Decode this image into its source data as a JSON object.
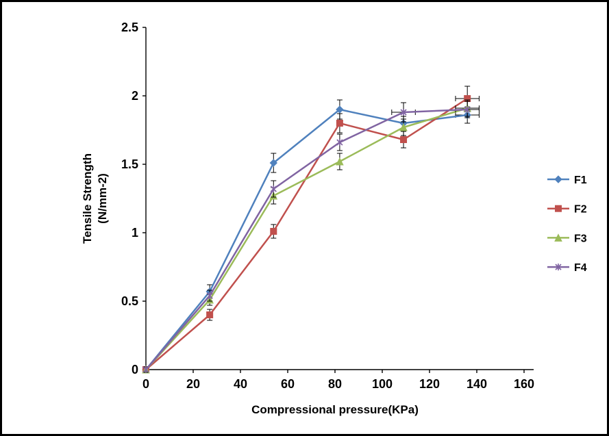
{
  "figure": {
    "background": "#ffffff",
    "border_color": "#000000"
  },
  "chart_data": {
    "type": "line",
    "title": "",
    "xlabel": "Compressional pressure(KPa)",
    "ylabel": "Tensile Strength (N/mm-2)",
    "ylabel_lines": [
      "Tensile Strength",
      "(N/mm-2)"
    ],
    "xlim": [
      0,
      160
    ],
    "ylim": [
      0,
      2.5
    ],
    "x_ticks": [
      "0",
      "20",
      "40",
      "60",
      "80",
      "100",
      "120",
      "140",
      "160"
    ],
    "y_ticks": [
      "0",
      "0.5",
      "1",
      "1.5",
      "2",
      "2.5"
    ],
    "grid": false,
    "error_bars": true,
    "legend_position": "right",
    "x": [
      0,
      27,
      54,
      82,
      109,
      136
    ],
    "series": [
      {
        "name": "F1",
        "color": "#4F81BD",
        "marker": "diamond",
        "values": [
          0,
          0.57,
          1.51,
          1.9,
          1.8,
          1.86
        ],
        "y_err": [
          0.02,
          0.05,
          0.07,
          0.07,
          0.05,
          0.06
        ],
        "x_err": [
          0,
          0,
          0,
          0,
          0,
          5
        ]
      },
      {
        "name": "F2",
        "color": "#C0504D",
        "marker": "square",
        "values": [
          0,
          0.4,
          1.01,
          1.8,
          1.68,
          1.98
        ],
        "y_err": [
          0.02,
          0.04,
          0.05,
          0.07,
          0.06,
          0.09
        ],
        "x_err": [
          0,
          0,
          0,
          0,
          0,
          5
        ]
      },
      {
        "name": "F3",
        "color": "#9BBB59",
        "marker": "triangle",
        "values": [
          0,
          0.51,
          1.27,
          1.52,
          1.77,
          1.91
        ],
        "y_err": [
          0.02,
          0.04,
          0.06,
          0.06,
          0.06,
          0.06
        ],
        "x_err": [
          0,
          0,
          0,
          0,
          0,
          5
        ]
      },
      {
        "name": "F4",
        "color": "#8064A2",
        "marker": "star",
        "values": [
          0,
          0.54,
          1.32,
          1.66,
          1.88,
          1.9
        ],
        "y_err": [
          0.02,
          0.04,
          0.06,
          0.06,
          0.07,
          0.06
        ],
        "x_err": [
          0,
          0,
          0,
          0,
          5,
          5
        ]
      }
    ],
    "legend_labels": [
      "F1",
      "F2",
      "F3",
      "F4"
    ]
  }
}
